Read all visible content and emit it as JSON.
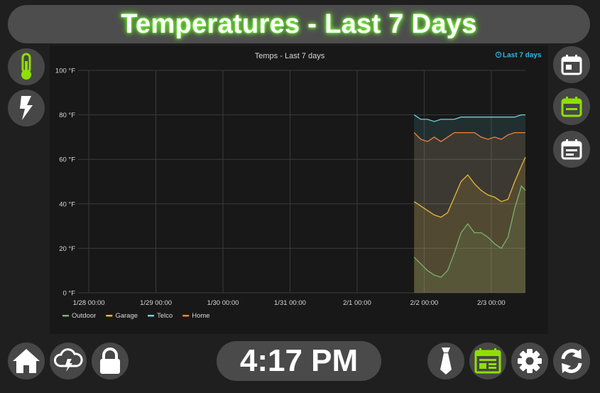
{
  "header": {
    "title": "Temperatures - Last 7 Days"
  },
  "left_nav": [
    {
      "icon": "thermometer-icon",
      "active": true
    },
    {
      "icon": "lightning-bolt-icon",
      "active": false
    }
  ],
  "right_nav": [
    {
      "icon": "calendar-day-icon",
      "active": false
    },
    {
      "icon": "calendar-week-icon",
      "active": true
    },
    {
      "icon": "calendar-month-icon",
      "active": false
    }
  ],
  "bottom_nav": [
    {
      "icon": "home-icon"
    },
    {
      "icon": "storm-cloud-icon"
    },
    {
      "icon": "lock-icon"
    },
    {
      "icon": "tie-icon"
    },
    {
      "icon": "dashboard-layout-icon",
      "active": true
    },
    {
      "icon": "gear-icon"
    },
    {
      "icon": "refresh-icon"
    }
  ],
  "clock": {
    "time": "4:17 PM"
  },
  "colors": {
    "accent": "#8ee000",
    "outdoor": "#7eb26d",
    "garage": "#eab839",
    "telco": "#6ed0e0",
    "home": "#ef843c"
  },
  "chart_data": {
    "type": "area",
    "title": "Temps - Last 7 days",
    "time_range_label": "Last 7 days",
    "ylim": [
      0,
      100
    ],
    "y_ticks": [
      "0 °F",
      "20 °F",
      "40 °F",
      "60 °F",
      "80 °F",
      "100 °F"
    ],
    "y_tick_values": [
      0,
      20,
      40,
      60,
      80,
      100
    ],
    "xlim": [
      -0.16,
      6.51
    ],
    "x_ticks": [
      "1/28 00:00",
      "1/29 00:00",
      "1/30 00:00",
      "1/31 00:00",
      "2/1 00:00",
      "2/2 00:00",
      "2/3 00:00"
    ],
    "x_tick_values": [
      0,
      1,
      2,
      3,
      4,
      5,
      6
    ],
    "legend_position": "bottom-left",
    "series": [
      {
        "name": "Outdoor",
        "color": "#7eb26d",
        "x": [
          4.85,
          4.95,
          5.05,
          5.15,
          5.25,
          5.35,
          5.45,
          5.55,
          5.65,
          5.75,
          5.85,
          5.95,
          6.05,
          6.15,
          6.25,
          6.35,
          6.45,
          6.51
        ],
        "y": [
          16,
          13,
          10,
          8,
          7,
          10,
          18,
          27,
          31,
          27,
          27,
          25,
          22,
          20,
          25,
          38,
          48,
          46
        ]
      },
      {
        "name": "Garage",
        "color": "#eab839",
        "x": [
          4.85,
          4.95,
          5.05,
          5.15,
          5.25,
          5.35,
          5.45,
          5.55,
          5.65,
          5.75,
          5.85,
          5.95,
          6.05,
          6.15,
          6.25,
          6.35,
          6.45,
          6.51
        ],
        "y": [
          41,
          39,
          37,
          35,
          34,
          36,
          43,
          50,
          53,
          49,
          46,
          44,
          43,
          41,
          42,
          50,
          57,
          61
        ]
      },
      {
        "name": "Telco",
        "color": "#6ed0e0",
        "x": [
          4.85,
          4.95,
          5.05,
          5.15,
          5.25,
          5.35,
          5.45,
          5.55,
          5.65,
          5.75,
          5.85,
          5.95,
          6.05,
          6.15,
          6.25,
          6.35,
          6.45,
          6.51
        ],
        "y": [
          80,
          78,
          78,
          77,
          78,
          78,
          78,
          79,
          79,
          79,
          79,
          79,
          79,
          79,
          79,
          79,
          80,
          80
        ]
      },
      {
        "name": "Home",
        "color": "#ef843c",
        "x": [
          4.85,
          4.95,
          5.05,
          5.15,
          5.25,
          5.35,
          5.45,
          5.55,
          5.65,
          5.75,
          5.85,
          5.95,
          6.05,
          6.15,
          6.25,
          6.35,
          6.45,
          6.51
        ],
        "y": [
          72,
          69,
          68,
          70,
          68,
          70,
          72,
          72,
          72,
          72,
          70,
          69,
          70,
          69,
          71,
          72,
          72,
          72
        ]
      }
    ]
  }
}
